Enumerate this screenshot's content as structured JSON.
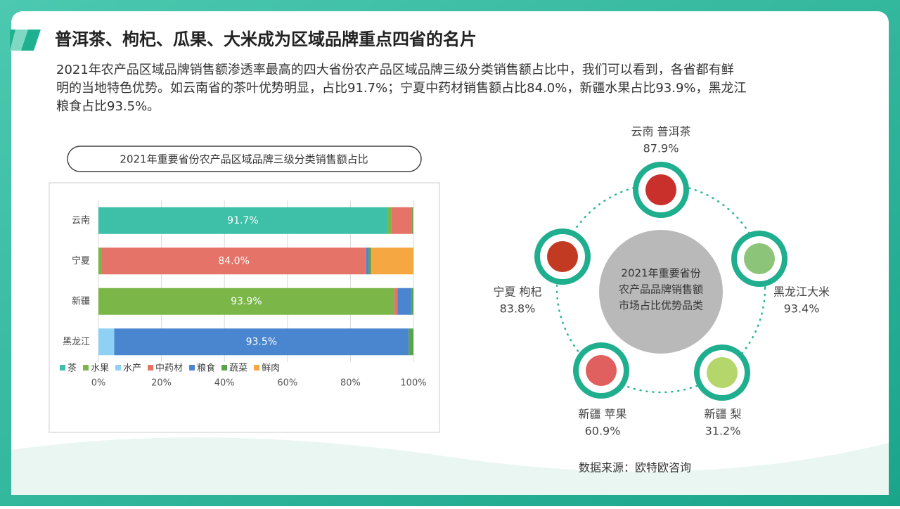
{
  "header": {
    "title": "普洱茶、枸杞、瓜果、大米成为区域品牌重点四省的名片"
  },
  "paragraph": [
    "2021年农产品区域品牌销售额渗透率最高的四大省份农产品区域品牌三级分类销售额占比中，我们可以看到，各省都有鲜",
    "明的当地特色优势。如云南省的茶叶优势明显，占比91.7%；宁夏中药材销售额占比84.0%，新疆水果占比93.9%，黑龙江",
    "粮食占比93.5%。"
  ],
  "chart_data": {
    "type": "stacked_bar_horizontal",
    "title": "2021年重要省份农产品区域品牌三级分类销售额占比",
    "categories": [
      "云南",
      "宁夏",
      "新疆",
      "黑龙江"
    ],
    "series": [
      {
        "name": "茶",
        "color": "#3dbfa8",
        "values": [
          91.7,
          0,
          0,
          0
        ],
        "value_labels": [
          "91.7%",
          null,
          null,
          null
        ]
      },
      {
        "name": "水果",
        "color": "#7ab648",
        "values": [
          1.2,
          1.0,
          93.9,
          0
        ],
        "value_labels": [
          null,
          null,
          "93.9%",
          null
        ]
      },
      {
        "name": "水产",
        "color": "#8fd0f5",
        "values": [
          0,
          0,
          0,
          5.0
        ]
      },
      {
        "name": "中药材",
        "color": "#e57368",
        "values": [
          6.6,
          84.0,
          1.0,
          0
        ],
        "value_labels": [
          null,
          "84.0%",
          null,
          null
        ]
      },
      {
        "name": "粮食",
        "color": "#4a86d0",
        "values": [
          0,
          0.8,
          4.6,
          93.5
        ],
        "value_labels": [
          null,
          null,
          null,
          "93.5%"
        ]
      },
      {
        "name": "蔬菜",
        "color": "#5aa34a",
        "values": [
          0.3,
          0.7,
          0.5,
          1.5
        ]
      },
      {
        "name": "鲜肉",
        "color": "#f5a742",
        "values": [
          0.2,
          13.5,
          0,
          0
        ]
      }
    ],
    "xlim": [
      0,
      100
    ],
    "xticks": [
      {
        "value": 0,
        "label": "0%"
      },
      {
        "value": 20,
        "label": "20%"
      },
      {
        "value": 40,
        "label": "40%"
      },
      {
        "value": 60,
        "label": "60%"
      },
      {
        "value": 80,
        "label": "80%"
      },
      {
        "value": 100,
        "label": "100%"
      }
    ],
    "grid": true,
    "legend": "bottom"
  },
  "diagram": {
    "center": [
      "2021年重要省份",
      "农产品品牌销售额",
      "市场占比优势品类"
    ],
    "nodes": [
      {
        "label": "云南 普洱茶",
        "value": "87.9%"
      },
      {
        "label": "黑龙江大米",
        "value": "93.4%"
      },
      {
        "label": "新疆  梨",
        "value": "31.2%"
      },
      {
        "label": "新疆 苹果",
        "value": "60.9%"
      },
      {
        "label": "宁夏 枸杞",
        "value": "83.8%"
      }
    ]
  },
  "footer": {
    "source": "数据来源：欧特欧咨询"
  }
}
